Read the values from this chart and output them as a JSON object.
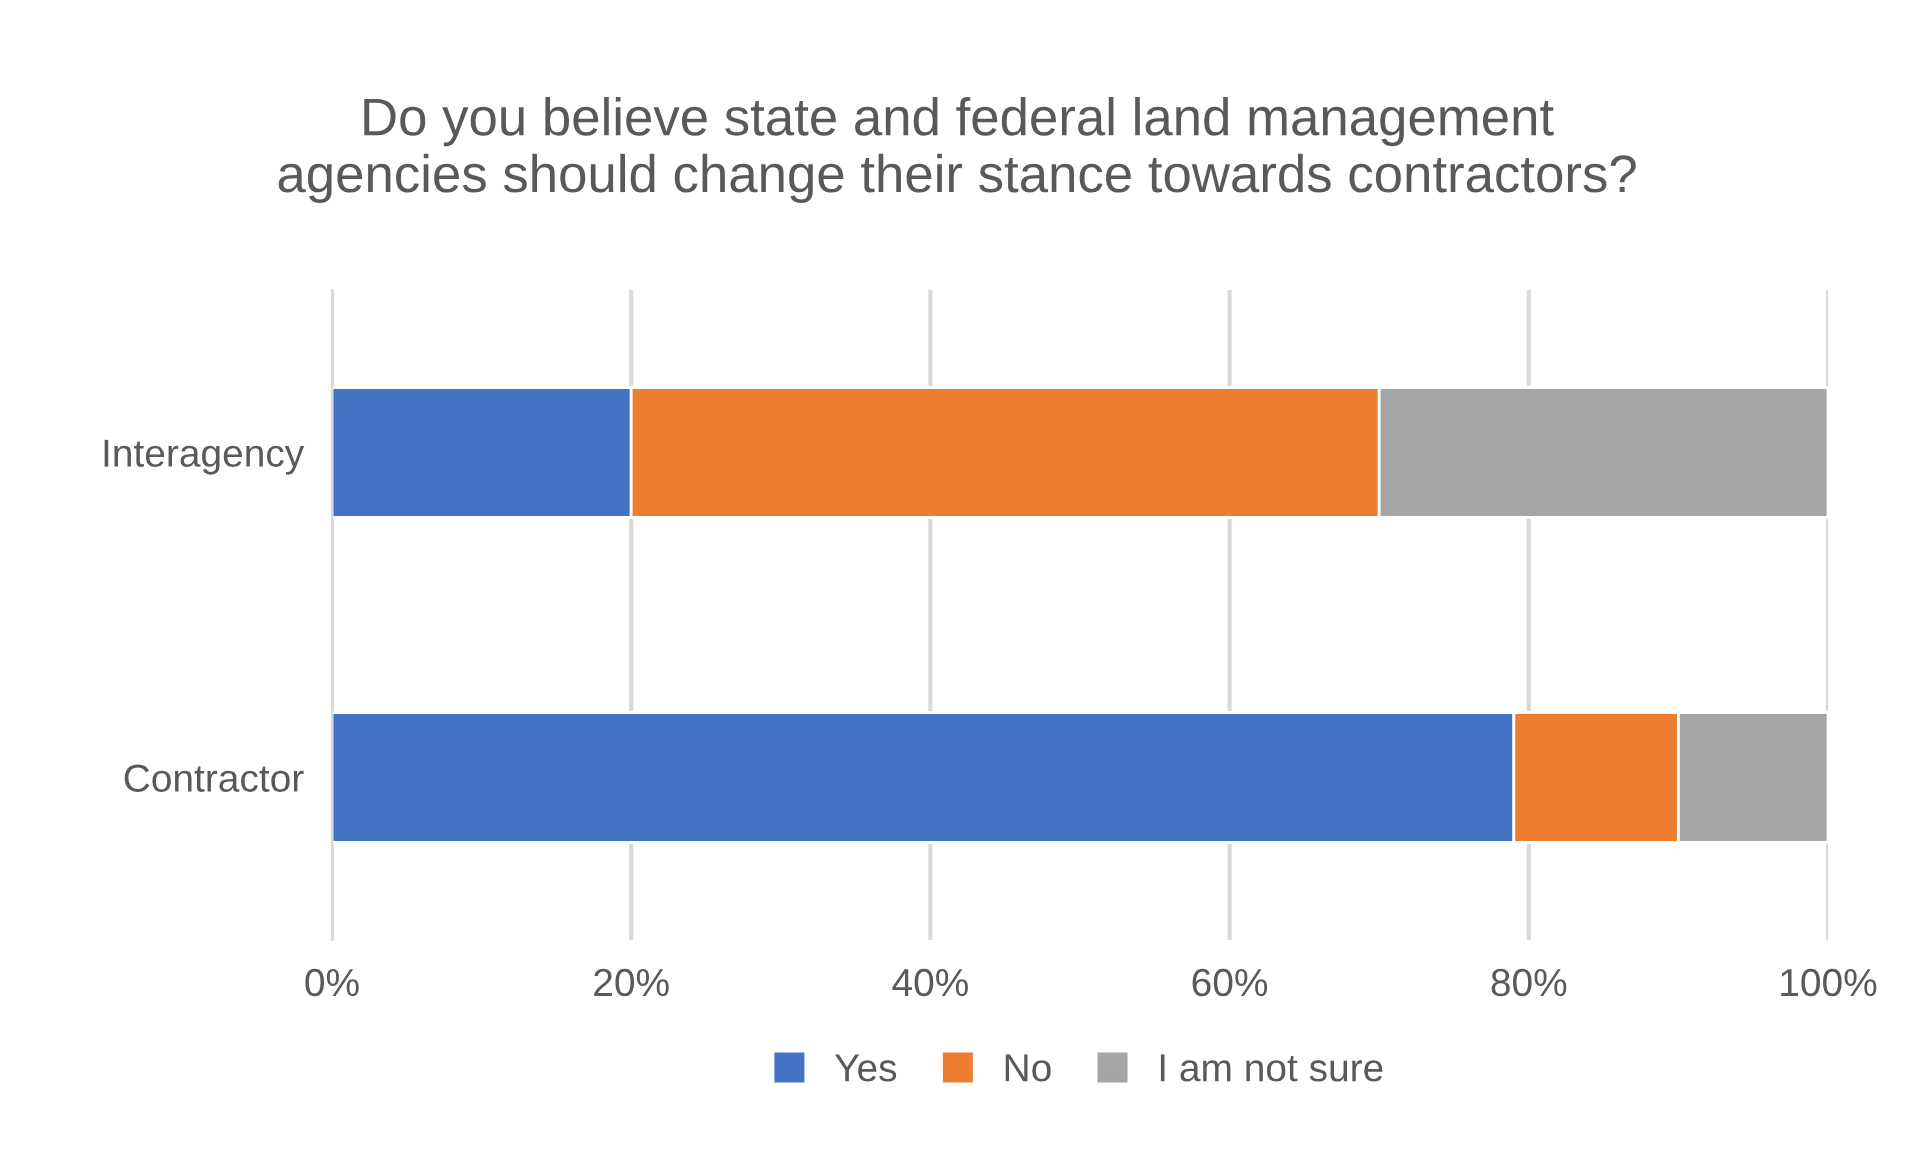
{
  "chart_data": {
    "type": "bar",
    "orientation": "horizontal",
    "stacked": true,
    "title": "Do you believe state and federal land management\nagencies should change their stance towards contractors?",
    "categories": [
      "Interagency",
      "Contractor"
    ],
    "series": [
      {
        "name": "Yes",
        "color": "#4472c4",
        "values": [
          20,
          79
        ]
      },
      {
        "name": "No",
        "color": "#ed7d31",
        "values": [
          50,
          11
        ]
      },
      {
        "name": "I am not sure",
        "color": "#a5a5a5",
        "values": [
          30,
          10
        ]
      }
    ],
    "xlim": [
      0,
      100
    ],
    "xticks": [
      {
        "value": 0,
        "label": "0%"
      },
      {
        "value": 20,
        "label": "20%"
      },
      {
        "value": 40,
        "label": "40%"
      },
      {
        "value": 60,
        "label": "60%"
      },
      {
        "value": 80,
        "label": "80%"
      },
      {
        "value": 100,
        "label": "100%"
      }
    ],
    "grid": "x",
    "legend": "bottom"
  }
}
